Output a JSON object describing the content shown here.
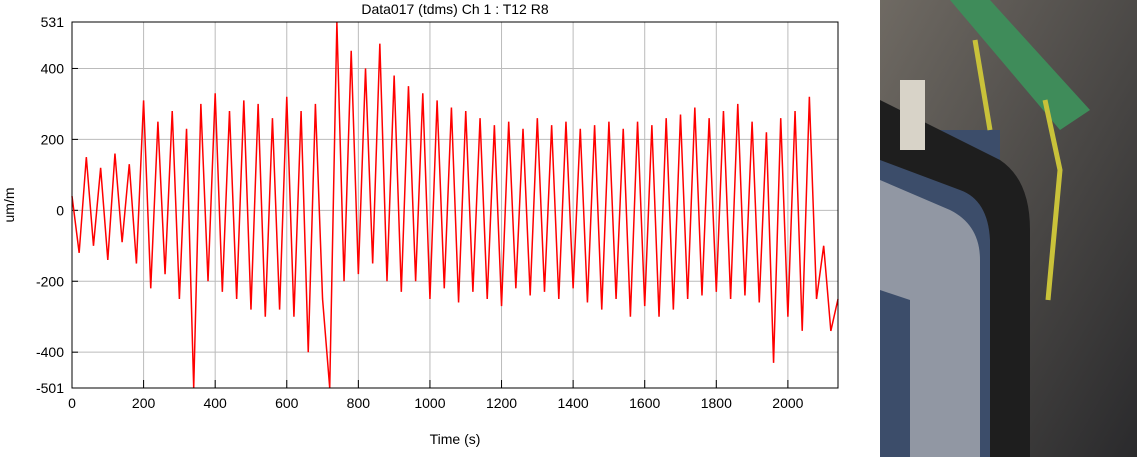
{
  "chart_data": {
    "type": "line",
    "title": "Data017 (tdms)  Ch 1 : T12  R8",
    "x_label": "Time (s)",
    "y_label": "um/m",
    "xlim": [
      0,
      2140
    ],
    "ylim": [
      -501,
      531
    ],
    "xticks": [
      0,
      200,
      400,
      600,
      800,
      1000,
      1200,
      1400,
      1600,
      1800,
      2000
    ],
    "yticks": [
      -501,
      -400,
      -200,
      0,
      200,
      400,
      531
    ],
    "grid": true,
    "series": [
      {
        "color": "#ff0000",
        "x": [
          0,
          20,
          40,
          60,
          80,
          100,
          120,
          140,
          160,
          180,
          200,
          220,
          240,
          260,
          280,
          300,
          320,
          340,
          360,
          380,
          400,
          420,
          440,
          460,
          480,
          500,
          520,
          540,
          560,
          580,
          600,
          620,
          640,
          660,
          680,
          700,
          720,
          740,
          760,
          780,
          800,
          820,
          840,
          860,
          880,
          900,
          920,
          940,
          960,
          980,
          1000,
          1020,
          1040,
          1060,
          1080,
          1100,
          1120,
          1140,
          1160,
          1180,
          1200,
          1220,
          1240,
          1260,
          1280,
          1300,
          1320,
          1340,
          1360,
          1380,
          1400,
          1420,
          1440,
          1460,
          1480,
          1500,
          1520,
          1540,
          1560,
          1580,
          1600,
          1620,
          1640,
          1660,
          1680,
          1700,
          1720,
          1740,
          1760,
          1780,
          1800,
          1820,
          1840,
          1860,
          1880,
          1900,
          1920,
          1940,
          1960,
          1980,
          2000,
          2020,
          2040,
          2060,
          2080,
          2100,
          2120,
          2140
        ],
        "values": [
          40,
          -120,
          150,
          -100,
          120,
          -140,
          160,
          -90,
          130,
          -150,
          310,
          -220,
          250,
          -180,
          280,
          -250,
          230,
          -501,
          300,
          -200,
          330,
          -230,
          280,
          -250,
          310,
          -280,
          300,
          -300,
          260,
          -280,
          320,
          -300,
          280,
          -400,
          300,
          -250,
          -501,
          531,
          -200,
          450,
          -180,
          400,
          -150,
          470,
          -200,
          380,
          -230,
          350,
          -200,
          330,
          -250,
          310,
          -220,
          290,
          -260,
          280,
          -230,
          260,
          -250,
          240,
          -270,
          250,
          -220,
          230,
          -240,
          260,
          -230,
          240,
          -250,
          250,
          -220,
          230,
          -260,
          240,
          -280,
          250,
          -250,
          230,
          -300,
          250,
          -270,
          240,
          -300,
          260,
          -280,
          270,
          -250,
          290,
          -240,
          260,
          -230,
          280,
          -250,
          300,
          -240,
          250,
          -260,
          220,
          -430,
          260,
          -300,
          280,
          -340,
          320,
          -250,
          -100,
          -340,
          -250
        ]
      }
    ]
  }
}
